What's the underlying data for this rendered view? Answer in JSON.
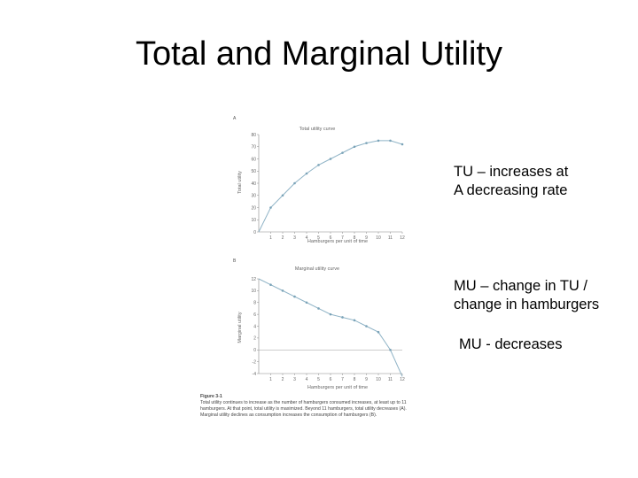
{
  "slide": {
    "title": "Total and Marginal Utility"
  },
  "notes": {
    "tu_line1": "TU – increases at",
    "tu_line2": "A decreasing rate",
    "mu_line1": "MU – change in TU /",
    "mu_line2": "change in hamburgers",
    "mu_decreases": "MU - decreases"
  },
  "figure": {
    "caption_label": "Figure 3-1",
    "caption_text": "Total utility continues to increase as the number of hamburgers consumed increases, at least up to 11 hamburgers. At that point, total utility is maximized. Beyond 11 hamburgers, total utility decreases (A). Marginal utility declines as consumption increases the consumption of hamburgers (B)."
  },
  "chart_data": [
    {
      "type": "line",
      "panel_label": "A",
      "title": "Total utility curve",
      "xlabel": "Hamburgers per unit of time",
      "ylabel": "Total utility",
      "x": [
        0,
        1,
        2,
        3,
        4,
        5,
        6,
        7,
        8,
        9,
        10,
        11,
        12
      ],
      "y": [
        0,
        20,
        30,
        40,
        48,
        55,
        60,
        65,
        70,
        73,
        75,
        75,
        72
      ],
      "xticks": [
        1,
        2,
        3,
        4,
        5,
        6,
        7,
        8,
        9,
        10,
        11,
        12
      ],
      "yticks": [
        0,
        10,
        20,
        30,
        40,
        50,
        60,
        70,
        80
      ],
      "xlim": [
        0,
        12
      ],
      "ylim": [
        0,
        80
      ],
      "colors": {
        "line": "#8fb3c6",
        "point": "#7aa3b8",
        "axis": "#888888"
      }
    },
    {
      "type": "line",
      "panel_label": "B",
      "title": "Marginal utility curve",
      "xlabel": "Hamburgers per unit of time",
      "ylabel": "Marginal utility",
      "x": [
        0,
        1,
        2,
        3,
        4,
        5,
        6,
        7,
        8,
        9,
        10,
        11
      ],
      "y": [
        12,
        11,
        10,
        9,
        8,
        7,
        6,
        5.5,
        5,
        4,
        3,
        0
      ],
      "xticks": [
        1,
        2,
        3,
        4,
        5,
        6,
        7,
        8,
        9,
        10,
        11,
        12
      ],
      "yticks": [
        -4,
        -2,
        0,
        2,
        4,
        6,
        8,
        10,
        12
      ],
      "ytick_labels": [
        "-4",
        "-2",
        "0",
        "2",
        "4",
        "6",
        "8",
        "10",
        "12"
      ],
      "xlim": [
        0,
        12
      ],
      "ylim": [
        -4,
        12
      ],
      "extend_to": [
        12,
        -4.5
      ],
      "colors": {
        "line": "#8fb3c6",
        "point": "#7aa3b8",
        "axis": "#888888",
        "zero": "#999999"
      }
    }
  ]
}
